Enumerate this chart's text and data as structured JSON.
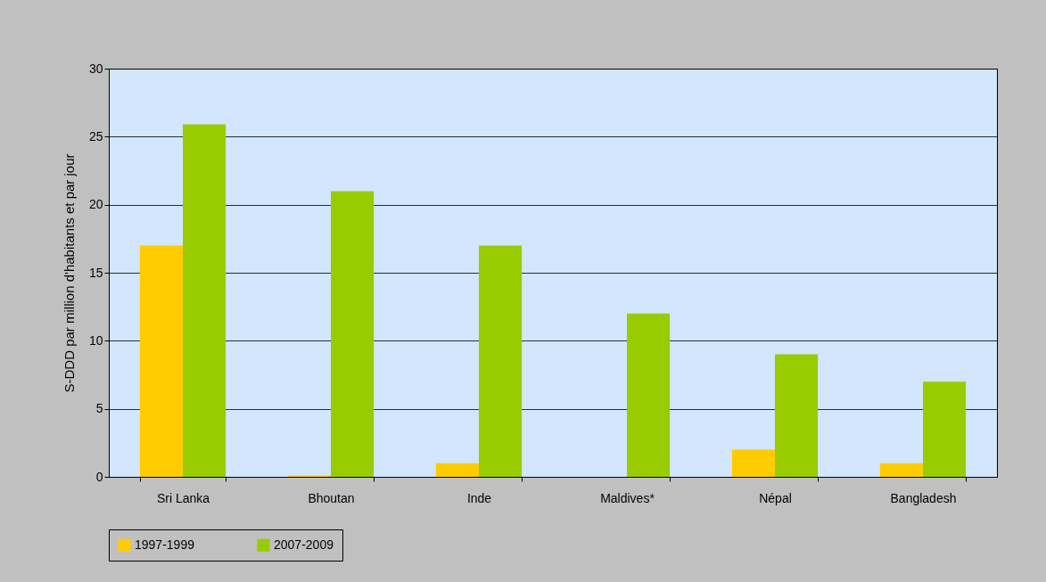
{
  "chart_data": {
    "type": "bar",
    "ylabel": "S-DDD par million d'habitants et par jour",
    "categories": [
      "Sri Lanka",
      "Bhoutan",
      "Inde",
      "Maldives*",
      "Népal",
      "Bangladesh"
    ],
    "series": [
      {
        "name": "1997-1999",
        "color": "#ffcc00",
        "values": [
          17,
          0.1,
          1,
          null,
          2,
          1
        ]
      },
      {
        "name": "2007-2009",
        "color": "#99cc00",
        "values": [
          25.9,
          21,
          17,
          12,
          9,
          7
        ]
      }
    ],
    "ylim": [
      0,
      30
    ],
    "yticks": [
      0,
      5,
      10,
      15,
      20,
      25,
      30
    ],
    "grid": "y",
    "legend": "bottom"
  }
}
